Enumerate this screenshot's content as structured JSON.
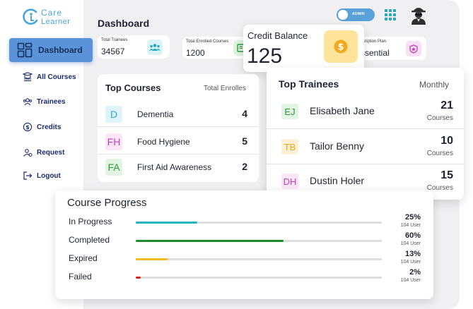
{
  "brand": {
    "line1": "Care",
    "line2": "Learner"
  },
  "nav": {
    "active": {
      "label": "Dashboard",
      "icon": "dashboard-icon"
    },
    "items": [
      {
        "label": "All Courses",
        "icon": "courses-icon"
      },
      {
        "label": "Trainees",
        "icon": "trainees-icon"
      },
      {
        "label": "Credits",
        "icon": "credits-icon"
      },
      {
        "label": "Request",
        "icon": "request-icon"
      },
      {
        "label": "Logout",
        "icon": "logout-icon"
      }
    ]
  },
  "header": {
    "title": "Dashboard",
    "toggle_label": "ADMIN",
    "toggle_on": true
  },
  "stats": {
    "total_trainees": {
      "label": "Total Trainees",
      "value": "34567",
      "icon": "users-icon",
      "color": "#d9f2f4"
    },
    "total_enrolled": {
      "label": "Total Enrolled Courses",
      "value": "1200",
      "icon": "book-icon",
      "color": "#dff3df"
    },
    "subscription": {
      "label": "Subscription Plan",
      "label_visible": "scription Plan",
      "value_visible": "ssential",
      "icon": "shield-icon",
      "color": "#f8e0f4"
    }
  },
  "credit": {
    "label": "Credit Balance",
    "value": "125",
    "icon": "coin-icon"
  },
  "top_courses": {
    "title": "Top Courses",
    "subtitle": "Total Enrolles",
    "rows": [
      {
        "badge": "D",
        "badge_bg": "#dff3fb",
        "badge_color": "#2fa6d0",
        "name": "Dementia",
        "count": "4"
      },
      {
        "badge": "FH",
        "badge_bg": "#fbe6f7",
        "badge_color": "#c13fb5",
        "name": "Food Hygiene",
        "count": "5"
      },
      {
        "badge": "FA",
        "badge_bg": "#e2f5e2",
        "badge_color": "#2c9a40",
        "name": "First Aid Awareness",
        "count": "2"
      }
    ]
  },
  "top_trainees": {
    "title": "Top Trainees",
    "period": "Monthly",
    "rows": [
      {
        "badge": "EJ",
        "badge_bg": "#e2f5e2",
        "badge_color": "#2c9a40",
        "name": "Elisabeth Jane",
        "count": "21",
        "unit": "Courses"
      },
      {
        "badge": "TB",
        "badge_bg": "#fdf0d5",
        "badge_color": "#e2a81f",
        "name": "Tailor Benny",
        "count": "10",
        "unit": "Courses"
      },
      {
        "badge": "DH",
        "badge_bg": "#fbe6f7",
        "badge_color": "#c13fb5",
        "name": "Dustin Holer",
        "count": "15",
        "unit": "Courses"
      }
    ]
  },
  "course_progress": {
    "title": "Course Progress",
    "rows": [
      {
        "label": "In Progress",
        "percent": 25,
        "percent_text": "25%",
        "users": "104 User",
        "color": "#27b3c0"
      },
      {
        "label": "Completed",
        "percent": 60,
        "percent_text": "60%",
        "users": "104 User",
        "color": "#1f8a2e"
      },
      {
        "label": "Expired",
        "percent": 13,
        "percent_text": "13%",
        "users": "104 User",
        "color": "#f5b820"
      },
      {
        "label": "Failed",
        "percent": 2,
        "percent_text": "2%",
        "users": "104 User",
        "color": "#e02020"
      }
    ]
  }
}
